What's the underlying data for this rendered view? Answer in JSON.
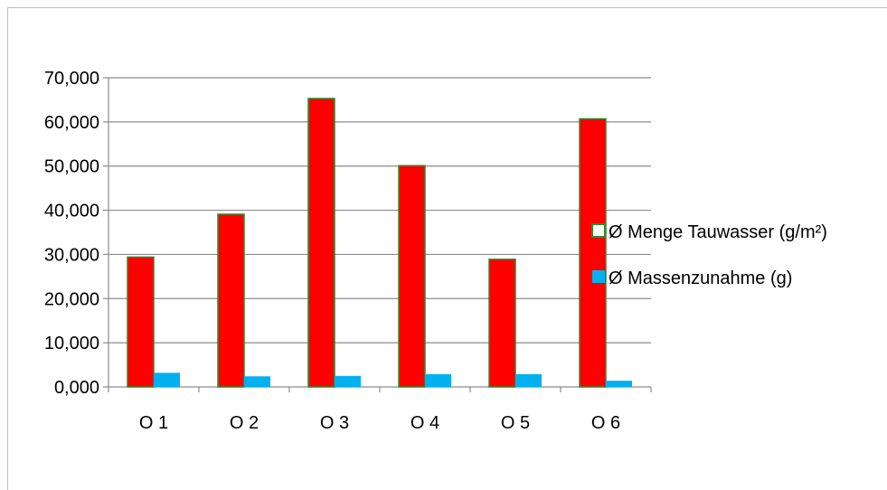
{
  "chart_data": {
    "type": "bar",
    "categories": [
      "O 1",
      "O 2",
      "O 3",
      "O 4",
      "O 5",
      "O 6"
    ],
    "series": [
      {
        "name": "Ø Menge Tauwasser (g/m²)",
        "values": [
          29.4,
          39.1,
          65.3,
          50.1,
          28.9,
          60.7
        ],
        "color": "#ff0000",
        "stroke": "#2e8b2e"
      },
      {
        "name": "Ø Massenzunahme (g)",
        "values": [
          3.2,
          2.4,
          2.5,
          2.9,
          2.9,
          1.4
        ],
        "color": "#00b0f0",
        "stroke": ""
      }
    ],
    "yticks": [
      "0,000",
      "10,000",
      "20,000",
      "30,000",
      "40,000",
      "50,000",
      "60,000",
      "70,000"
    ],
    "ylim": [
      0,
      70
    ],
    "grid": true,
    "legend_position": "right"
  }
}
